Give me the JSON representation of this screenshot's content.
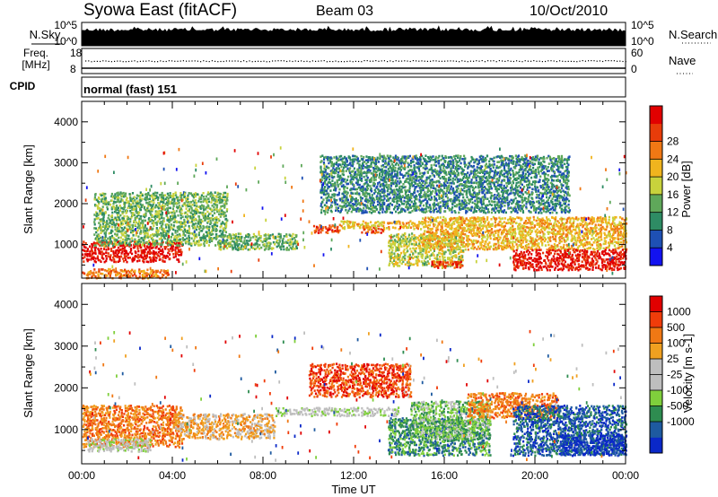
{
  "header": {
    "station": "Syowa East (fitACF)",
    "beam": "Beam 03",
    "date": "10/Oct/2010"
  },
  "top_panels": {
    "nsky_label": "N.Sky",
    "nsky_ticks": [
      "10^5",
      "10^0"
    ],
    "nsearch_label": "N.Search",
    "freq_label_1": "Freq.",
    "freq_label_2": "[MHz]",
    "freq_ticks": [
      "18",
      "8"
    ],
    "nave_label": "Nave",
    "nave_ticks": [
      "60",
      "0"
    ],
    "cpid_label": "CPID",
    "cpid_value": "normal (fast) 151"
  },
  "chart_data": [
    {
      "type": "heatmap",
      "name": "Power",
      "ylabel": "Slant Range [km]",
      "xlabel": "",
      "xlim": [
        "00:00",
        "24:00"
      ],
      "ylim": [
        180,
        4500
      ],
      "y_ticks": [
        "1000",
        "2000",
        "3000",
        "4000"
      ],
      "colorbar": {
        "label": "Power [dB]",
        "ticks": [
          "4",
          "8",
          "12",
          "16",
          "20",
          "24",
          "28"
        ],
        "colors": [
          "#1212f0",
          "#1e50b4",
          "#2e8c64",
          "#5fa85a",
          "#c8d23c",
          "#f0b41e",
          "#f07814",
          "#e83c0a",
          "#e10000"
        ]
      },
      "regions": [
        {
          "t": [
            0.0,
            4.4
          ],
          "r": [
            600,
            1100
          ],
          "level": 8
        },
        {
          "t": [
            0.0,
            3.8
          ],
          "r": [
            200,
            420
          ],
          "level": 6
        },
        {
          "t": [
            0.5,
            6.4
          ],
          "r": [
            1000,
            2300
          ],
          "level": 3
        },
        {
          "t": [
            6.0,
            9.5
          ],
          "r": [
            900,
            1300
          ],
          "level": 3
        },
        {
          "t": [
            10.2,
            11.4
          ],
          "r": [
            1300,
            1500
          ],
          "level": 7
        },
        {
          "t": [
            12.3,
            13.3
          ],
          "r": [
            1300,
            1500
          ],
          "level": 7
        },
        {
          "t": [
            11.3,
            15.0
          ],
          "r": [
            1400,
            1600
          ],
          "level": 5
        },
        {
          "t": [
            13.5,
            16.8
          ],
          "r": [
            500,
            1300
          ],
          "level": 4
        },
        {
          "t": [
            15.4,
            16.8
          ],
          "r": [
            450,
            620
          ],
          "level": 7
        },
        {
          "t": [
            15.0,
            24.0
          ],
          "r": [
            900,
            1700
          ],
          "level": 5
        },
        {
          "t": [
            19.0,
            24.0
          ],
          "r": [
            400,
            900
          ],
          "level": 8
        },
        {
          "t": [
            10.5,
            21.5
          ],
          "r": [
            1800,
            3200
          ],
          "level": 2
        }
      ]
    },
    {
      "type": "heatmap",
      "name": "Velocity",
      "ylabel": "Slant Range [km]",
      "xlabel": "Time UT",
      "xlim": [
        "00:00",
        "24:00"
      ],
      "ylim": [
        180,
        4500
      ],
      "y_ticks": [
        "1000",
        "2000",
        "3000",
        "4000"
      ],
      "x_ticks": [
        "00:00",
        "04:00",
        "08:00",
        "12:00",
        "16:00",
        "20:00",
        "00:00"
      ],
      "colorbar": {
        "label": "Velocity [m s-1]",
        "ticks": [
          "1000",
          "500",
          "100",
          "25",
          "-25",
          "-100",
          "-500",
          "-1000"
        ],
        "colors": [
          "#0a28c8",
          "#1e5aa0",
          "#2e8c50",
          "#7fcf3c",
          "#bebebe",
          "#bebebe",
          "#f0a020",
          "#f07814",
          "#f03c0a",
          "#e10000"
        ]
      },
      "regions": [
        {
          "t": [
            0.0,
            4.4
          ],
          "r": [
            600,
            1600
          ],
          "level": 7
        },
        {
          "t": [
            0.2,
            3.0
          ],
          "r": [
            500,
            800
          ],
          "level": 4
        },
        {
          "t": [
            4.0,
            8.5
          ],
          "r": [
            800,
            1400
          ],
          "level": 6
        },
        {
          "t": [
            8.5,
            14.0
          ],
          "r": [
            1350,
            1550
          ],
          "level": 4
        },
        {
          "t": [
            10.0,
            14.5
          ],
          "r": [
            1800,
            2600
          ],
          "level": 8
        },
        {
          "t": [
            13.5,
            18.0
          ],
          "r": [
            400,
            1300
          ],
          "level": 2
        },
        {
          "t": [
            14.5,
            18.0
          ],
          "r": [
            800,
            1700
          ],
          "level": 3
        },
        {
          "t": [
            17.0,
            21.0
          ],
          "r": [
            1300,
            1900
          ],
          "level": 7
        },
        {
          "t": [
            19.0,
            24.0
          ],
          "r": [
            400,
            1600
          ],
          "level": 1
        },
        {
          "t": [
            21.0,
            24.0
          ],
          "r": [
            400,
            900
          ],
          "level": 0
        }
      ]
    }
  ]
}
